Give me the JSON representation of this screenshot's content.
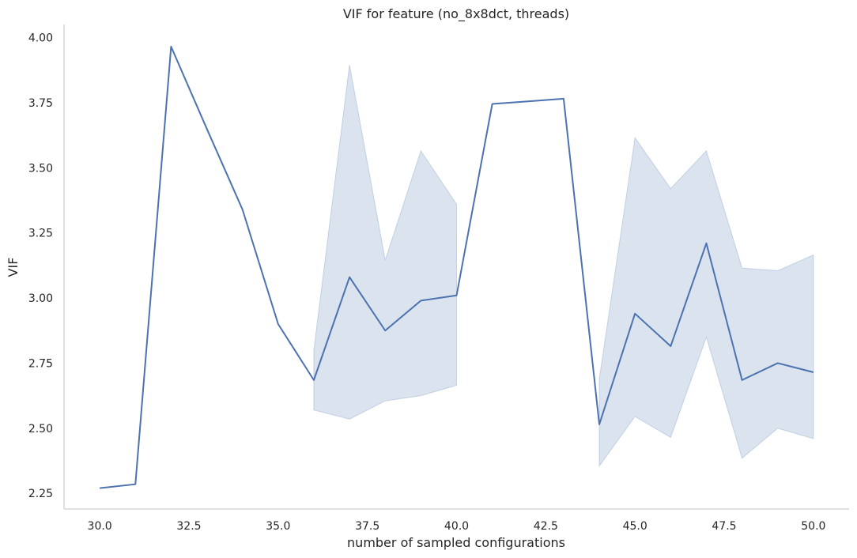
{
  "chart_data": {
    "type": "line",
    "title": "VIF for feature (no_8x8dct, threads)",
    "xlabel": "number of sampled configurations",
    "ylabel": "VIF",
    "xlim": [
      29,
      51
    ],
    "ylim": [
      2.19,
      4.05
    ],
    "x_ticks": [
      30.0,
      32.5,
      35.0,
      37.5,
      40.0,
      42.5,
      45.0,
      47.5,
      50.0
    ],
    "x_tick_labels": [
      "30.0",
      "32.5",
      "35.0",
      "37.5",
      "40.0",
      "42.5",
      "45.0",
      "47.5",
      "50.0"
    ],
    "y_ticks": [
      2.25,
      2.5,
      2.75,
      3.0,
      3.25,
      3.5,
      3.75,
      4.0
    ],
    "y_tick_labels": [
      "2.25",
      "2.50",
      "2.75",
      "3.00",
      "3.25",
      "3.50",
      "3.75",
      "4.00"
    ],
    "grid": false,
    "line_color": "#4c72b0",
    "band_color": "#4c72b0",
    "series": [
      {
        "x": [
          30,
          31,
          32,
          33,
          34,
          35,
          36,
          37,
          38,
          39,
          40,
          41,
          42,
          43,
          44,
          45,
          46,
          47,
          48,
          49,
          50
        ],
        "y": [
          2.27,
          2.285,
          3.965,
          3.65,
          3.34,
          2.9,
          2.685,
          3.08,
          2.875,
          2.99,
          3.01,
          3.745,
          3.755,
          3.765,
          2.515,
          2.94,
          2.815,
          3.21,
          2.685,
          2.75,
          2.715
        ]
      }
    ],
    "confidence_band": {
      "segments": [
        {
          "x": [
            36,
            37,
            38,
            39,
            40
          ],
          "lower": [
            2.57,
            2.535,
            2.605,
            2.625,
            2.665
          ],
          "upper": [
            2.8,
            3.895,
            3.145,
            3.565,
            3.36
          ]
        },
        {
          "x": [
            44,
            45,
            46,
            47,
            48,
            49,
            50
          ],
          "lower": [
            2.355,
            2.545,
            2.465,
            2.85,
            2.385,
            2.5,
            2.46
          ],
          "upper": [
            2.69,
            3.615,
            3.42,
            3.565,
            3.115,
            3.105,
            3.165
          ]
        }
      ]
    }
  }
}
